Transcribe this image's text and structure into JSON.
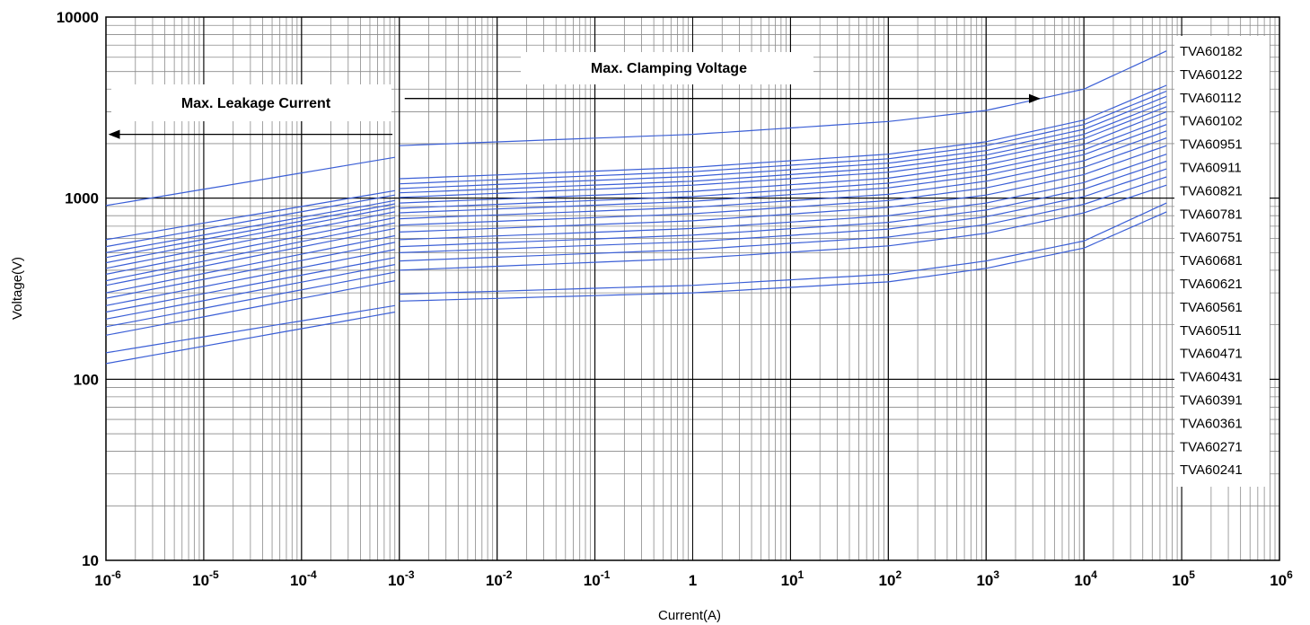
{
  "chart_data": {
    "type": "line",
    "x_scale": "log",
    "y_scale": "log",
    "xlim": [
      1e-06,
      1000000
    ],
    "ylim": [
      10,
      10000
    ],
    "xlabel": "Current(A)",
    "ylabel": "Voltage(V)",
    "grid": true,
    "legend_position": "right",
    "line_color": "#3b5fd6",
    "y_ticks": [
      {
        "value": 10,
        "label": "10"
      },
      {
        "value": 100,
        "label": "100"
      },
      {
        "value": 1000,
        "label": "1000"
      },
      {
        "value": 10000,
        "label": "10000"
      }
    ],
    "x_ticks": [
      {
        "value": 1e-06,
        "base": "10",
        "exp": "-6"
      },
      {
        "value": 1e-05,
        "base": "10",
        "exp": "-5"
      },
      {
        "value": 0.0001,
        "base": "10",
        "exp": "-4"
      },
      {
        "value": 0.001,
        "base": "10",
        "exp": "-3"
      },
      {
        "value": 0.01,
        "base": "10",
        "exp": "-2"
      },
      {
        "value": 0.1,
        "base": "10",
        "exp": "-1"
      },
      {
        "value": 1,
        "base": "1",
        "exp": ""
      },
      {
        "value": 10,
        "base": "10",
        "exp": "1"
      },
      {
        "value": 100,
        "base": "10",
        "exp": "2"
      },
      {
        "value": 1000,
        "base": "10",
        "exp": "3"
      },
      {
        "value": 10000,
        "base": "10",
        "exp": "4"
      },
      {
        "value": 100000,
        "base": "10",
        "exp": "5"
      },
      {
        "value": 1000000,
        "base": "10",
        "exp": "6"
      }
    ],
    "annotations": [
      {
        "text": "Max. Leakage Current",
        "direction": "left",
        "arrow_from": 0.00085,
        "arrow_to": 1e-06,
        "arrow_y": 2250
      },
      {
        "text": "Max. Clamping Voltage",
        "direction": "right",
        "arrow_from": 0.001,
        "arrow_to": 3500,
        "arrow_y": 3550
      }
    ],
    "legend": [
      "TVA60182",
      "TVA60122",
      "TVA60112",
      "TVA60102",
      "TVA60951",
      "TVA60911",
      "TVA60821",
      "TVA60781",
      "TVA60751",
      "TVA60681",
      "TVA60621",
      "TVA60561",
      "TVA60511",
      "TVA60471",
      "TVA60431",
      "TVA60391",
      "TVA60361",
      "TVA60271",
      "TVA60241"
    ],
    "series": [
      {
        "name": "TVA60182",
        "leakage": [
          [
            1e-06,
            910
          ],
          [
            0.0009,
            1680
          ]
        ],
        "clamping": [
          [
            0.001,
            1950
          ],
          [
            1,
            2250
          ],
          [
            100,
            2650
          ],
          [
            1000,
            3050
          ],
          [
            10000,
            4000
          ],
          [
            70000,
            6500
          ]
        ]
      },
      {
        "name": "TVA60122",
        "leakage": [
          [
            1e-06,
            590
          ],
          [
            0.0009,
            1100
          ]
        ],
        "clamping": [
          [
            0.001,
            1280
          ],
          [
            1,
            1480
          ],
          [
            100,
            1750
          ],
          [
            1000,
            2050
          ],
          [
            10000,
            2700
          ],
          [
            70000,
            4200
          ]
        ]
      },
      {
        "name": "TVA60112",
        "leakage": [
          [
            1e-06,
            540
          ],
          [
            0.0009,
            1040
          ]
        ],
        "clamping": [
          [
            0.001,
            1200
          ],
          [
            1,
            1400
          ],
          [
            100,
            1650
          ],
          [
            1000,
            1950
          ],
          [
            10000,
            2550
          ],
          [
            70000,
            3900
          ]
        ]
      },
      {
        "name": "TVA60102",
        "leakage": [
          [
            1e-06,
            500
          ],
          [
            0.0009,
            970
          ]
        ],
        "clamping": [
          [
            0.001,
            1130
          ],
          [
            1,
            1320
          ],
          [
            100,
            1560
          ],
          [
            1000,
            1830
          ],
          [
            10000,
            2400
          ],
          [
            70000,
            3650
          ]
        ]
      },
      {
        "name": "TVA60951",
        "leakage": [
          [
            1e-06,
            470
          ],
          [
            0.0009,
            930
          ]
        ],
        "clamping": [
          [
            0.001,
            1070
          ],
          [
            1,
            1240
          ],
          [
            100,
            1470
          ],
          [
            1000,
            1730
          ],
          [
            10000,
            2250
          ],
          [
            70000,
            3400
          ]
        ]
      },
      {
        "name": "TVA60911",
        "leakage": [
          [
            1e-06,
            440
          ],
          [
            0.0009,
            890
          ]
        ],
        "clamping": [
          [
            0.001,
            1010
          ],
          [
            1,
            1180
          ],
          [
            100,
            1390
          ],
          [
            1000,
            1640
          ],
          [
            10000,
            2130
          ],
          [
            70000,
            3200
          ]
        ]
      },
      {
        "name": "TVA60821",
        "leakage": [
          [
            1e-06,
            410
          ],
          [
            0.0009,
            840
          ]
        ],
        "clamping": [
          [
            0.001,
            940
          ],
          [
            1,
            1090
          ],
          [
            100,
            1290
          ],
          [
            1000,
            1530
          ],
          [
            10000,
            1980
          ],
          [
            70000,
            3000
          ]
        ]
      },
      {
        "name": "TVA60781",
        "leakage": [
          [
            1e-06,
            380
          ],
          [
            0.0009,
            780
          ]
        ],
        "clamping": [
          [
            0.001,
            880
          ],
          [
            1,
            1020
          ],
          [
            100,
            1210
          ],
          [
            1000,
            1430
          ],
          [
            10000,
            1850
          ],
          [
            70000,
            2750
          ]
        ]
      },
      {
        "name": "TVA60751",
        "leakage": [
          [
            1e-06,
            350
          ],
          [
            0.0009,
            730
          ]
        ],
        "clamping": [
          [
            0.001,
            830
          ],
          [
            1,
            960
          ],
          [
            100,
            1140
          ],
          [
            1000,
            1340
          ],
          [
            10000,
            1740
          ],
          [
            70000,
            2550
          ]
        ]
      },
      {
        "name": "TVA60681",
        "leakage": [
          [
            1e-06,
            330
          ],
          [
            0.0009,
            680
          ]
        ],
        "clamping": [
          [
            0.001,
            770
          ],
          [
            1,
            890
          ],
          [
            100,
            1050
          ],
          [
            1000,
            1240
          ],
          [
            10000,
            1610
          ],
          [
            70000,
            2350
          ]
        ]
      },
      {
        "name": "TVA60621",
        "leakage": [
          [
            1e-06,
            300
          ],
          [
            0.0009,
            620
          ]
        ],
        "clamping": [
          [
            0.001,
            710
          ],
          [
            1,
            820
          ],
          [
            100,
            970
          ],
          [
            1000,
            1140
          ],
          [
            10000,
            1480
          ],
          [
            70000,
            2150
          ]
        ]
      },
      {
        "name": "TVA60561",
        "leakage": [
          [
            1e-06,
            280
          ],
          [
            0.0009,
            570
          ]
        ],
        "clamping": [
          [
            0.001,
            650
          ],
          [
            1,
            750
          ],
          [
            100,
            890
          ],
          [
            1000,
            1040
          ],
          [
            10000,
            1350
          ],
          [
            70000,
            1950
          ]
        ]
      },
      {
        "name": "TVA60511",
        "leakage": [
          [
            1e-06,
            255
          ],
          [
            0.0009,
            520
          ]
        ],
        "clamping": [
          [
            0.001,
            590
          ],
          [
            1,
            680
          ],
          [
            100,
            800
          ],
          [
            1000,
            940
          ],
          [
            10000,
            1220
          ],
          [
            70000,
            1750
          ]
        ]
      },
      {
        "name": "TVA60471",
        "leakage": [
          [
            1e-06,
            235
          ],
          [
            0.0009,
            470
          ]
        ],
        "clamping": [
          [
            0.001,
            540
          ],
          [
            1,
            625
          ],
          [
            100,
            735
          ],
          [
            1000,
            860
          ],
          [
            10000,
            1120
          ],
          [
            70000,
            1600
          ]
        ]
      },
      {
        "name": "TVA60431",
        "leakage": [
          [
            1e-06,
            215
          ],
          [
            0.0009,
            430
          ]
        ],
        "clamping": [
          [
            0.001,
            500
          ],
          [
            1,
            575
          ],
          [
            100,
            675
          ],
          [
            1000,
            790
          ],
          [
            10000,
            1020
          ],
          [
            70000,
            1450
          ]
        ]
      },
      {
        "name": "TVA60391",
        "leakage": [
          [
            1e-06,
            195
          ],
          [
            0.0009,
            390
          ]
        ],
        "clamping": [
          [
            0.001,
            450
          ],
          [
            1,
            520
          ],
          [
            100,
            610
          ],
          [
            1000,
            715
          ],
          [
            10000,
            925
          ],
          [
            70000,
            1310
          ]
        ]
      },
      {
        "name": "TVA60361",
        "leakage": [
          [
            1e-06,
            175
          ],
          [
            0.0009,
            350
          ]
        ],
        "clamping": [
          [
            0.001,
            400
          ],
          [
            1,
            465
          ],
          [
            100,
            545
          ],
          [
            1000,
            640
          ],
          [
            10000,
            830
          ],
          [
            70000,
            1180
          ]
        ]
      },
      {
        "name": "TVA60271",
        "leakage": [
          [
            1e-06,
            140
          ],
          [
            0.0009,
            255
          ]
        ],
        "clamping": [
          [
            0.001,
            295
          ],
          [
            1,
            330
          ],
          [
            100,
            380
          ],
          [
            1000,
            450
          ],
          [
            10000,
            580
          ],
          [
            70000,
            940
          ]
        ]
      },
      {
        "name": "TVA60241",
        "leakage": [
          [
            1e-06,
            122
          ],
          [
            0.0009,
            235
          ]
        ],
        "clamping": [
          [
            0.001,
            270
          ],
          [
            1,
            300
          ],
          [
            100,
            345
          ],
          [
            1000,
            410
          ],
          [
            10000,
            530
          ],
          [
            70000,
            840
          ]
        ]
      }
    ]
  }
}
